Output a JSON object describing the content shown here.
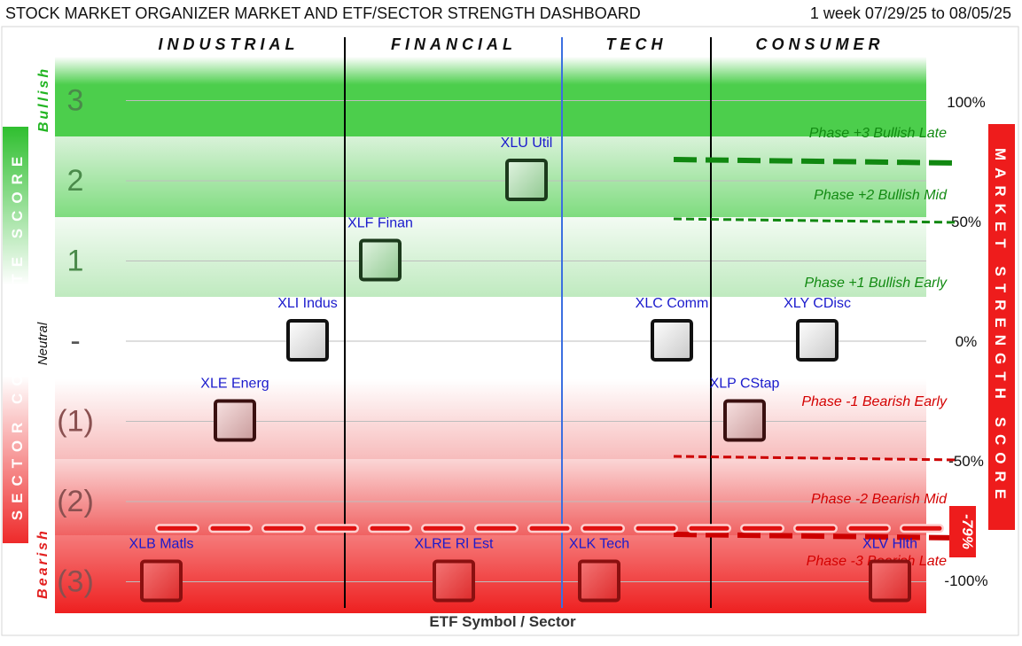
{
  "header": {
    "title": "STOCK MARKET ORGANIZER MARKET AND ETF/SECTOR STRENGTH DASHBOARD",
    "period": "1 week 07/29/25 to 08/05/25"
  },
  "colors": {
    "bullish_green": "#4cce4c",
    "bearish_red": "#ee2a2a",
    "divider_black": "#000000",
    "divider_blue": "#3b6fe0",
    "market_line_green": "#118811",
    "market_line_red": "#cc0000",
    "label_blue": "#1a1acc"
  },
  "chart_data": {
    "type": "scatter",
    "xlabel": "ETF Symbol / Sector",
    "left_axis_label": "SECTOR COMPOSITE SCORE",
    "right_axis_label": "MARKET STRENGTH SCORE",
    "left_end_labels": {
      "top": "Bullish",
      "middle": "Neutral",
      "bottom": "Bearish"
    },
    "sectors": [
      "INDUSTRIAL",
      "FINANCIAL",
      "TECH",
      "CONSUMER"
    ],
    "composite_ticks": [
      "3",
      "2",
      "1",
      "-",
      "(1)",
      "(2)",
      "(3)"
    ],
    "composite_range": [
      -3,
      3
    ],
    "market_ticks": [
      "100%",
      "50%",
      "0%",
      "-50%",
      "-100%"
    ],
    "market_range": [
      -100,
      100
    ],
    "market_score": -79,
    "market_score_label": "-79%",
    "phases": [
      "Phase +3 Bullish Late",
      "Phase +2 Bullish Mid",
      "Phase +1 Bullish Early",
      "Phase -1 Bearish Early",
      "Phase -2 Bearish Mid",
      "Phase -3 Bearish Late"
    ],
    "points": [
      {
        "label": "XLB Matls",
        "score": -3
      },
      {
        "label": "XLE Energ",
        "score": -1
      },
      {
        "label": "XLI Indus",
        "score": 0
      },
      {
        "label": "XLF Finan",
        "score": 1
      },
      {
        "label": "XLRE Rl Est",
        "score": -3
      },
      {
        "label": "XLU Util",
        "score": 2
      },
      {
        "label": "XLK Tech",
        "score": -3
      },
      {
        "label": "XLC Comm",
        "score": 0
      },
      {
        "label": "XLP CStap",
        "score": -1
      },
      {
        "label": "XLY CDisc",
        "score": 0
      },
      {
        "label": "XLV Hlth",
        "score": -3
      }
    ]
  }
}
